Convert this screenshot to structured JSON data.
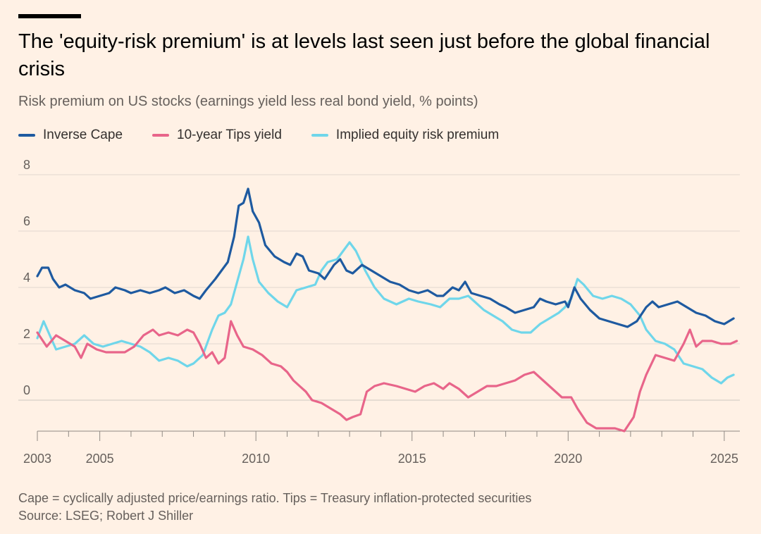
{
  "header": {
    "title": "The 'equity-risk premium' is at levels last seen just before the global financial crisis",
    "subtitle": "Risk premium on US stocks (earnings yield less real bond yield, % points)"
  },
  "legend": [
    {
      "label": "Inverse Cape",
      "color": "#1E5AA0"
    },
    {
      "label": "10-year Tips yield",
      "color": "#E8658A"
    },
    {
      "label": "Implied equity risk premium",
      "color": "#6FD6EA"
    }
  ],
  "footer": {
    "note": "Cape = cyclically adjusted price/earnings ratio. Tips = Treasury inflation-protected securities",
    "source": "Source: LSEG; Robert J Shiller"
  },
  "chart_data": {
    "type": "line",
    "title": "The 'equity-risk premium' is at levels last seen just before the global financial crisis",
    "subtitle": "Risk premium on US stocks (earnings yield less real bond yield, % points)",
    "xlabel": "",
    "ylabel": "",
    "xlim": [
      2003,
      2025.5
    ],
    "ylim": [
      -1.1,
      8
    ],
    "yticks": [
      0,
      2,
      4,
      6,
      8
    ],
    "xticks": [
      2003,
      2005,
      2010,
      2015,
      2020,
      2025
    ],
    "grid": "horizontal",
    "legend_position": "top",
    "series": [
      {
        "name": "Inverse Cape",
        "color": "#1E5AA0",
        "points": [
          [
            2003.0,
            4.4
          ],
          [
            2003.15,
            4.7
          ],
          [
            2003.35,
            4.7
          ],
          [
            2003.5,
            4.3
          ],
          [
            2003.7,
            4.0
          ],
          [
            2003.9,
            4.1
          ],
          [
            2004.2,
            3.9
          ],
          [
            2004.5,
            3.8
          ],
          [
            2004.7,
            3.6
          ],
          [
            2005.0,
            3.7
          ],
          [
            2005.3,
            3.8
          ],
          [
            2005.5,
            4.0
          ],
          [
            2005.8,
            3.9
          ],
          [
            2006.0,
            3.8
          ],
          [
            2006.3,
            3.9
          ],
          [
            2006.6,
            3.8
          ],
          [
            2006.9,
            3.9
          ],
          [
            2007.1,
            4.0
          ],
          [
            2007.4,
            3.8
          ],
          [
            2007.7,
            3.9
          ],
          [
            2008.0,
            3.7
          ],
          [
            2008.2,
            3.6
          ],
          [
            2008.4,
            3.9
          ],
          [
            2008.7,
            4.3
          ],
          [
            2008.9,
            4.6
          ],
          [
            2009.1,
            4.9
          ],
          [
            2009.3,
            5.8
          ],
          [
            2009.45,
            6.9
          ],
          [
            2009.6,
            7.0
          ],
          [
            2009.75,
            7.5
          ],
          [
            2009.9,
            6.7
          ],
          [
            2010.1,
            6.3
          ],
          [
            2010.3,
            5.5
          ],
          [
            2010.6,
            5.1
          ],
          [
            2010.9,
            4.9
          ],
          [
            2011.1,
            4.8
          ],
          [
            2011.3,
            5.2
          ],
          [
            2011.5,
            5.1
          ],
          [
            2011.7,
            4.6
          ],
          [
            2012.0,
            4.5
          ],
          [
            2012.2,
            4.3
          ],
          [
            2012.5,
            4.8
          ],
          [
            2012.7,
            5.0
          ],
          [
            2012.9,
            4.6
          ],
          [
            2013.1,
            4.5
          ],
          [
            2013.4,
            4.8
          ],
          [
            2013.7,
            4.6
          ],
          [
            2014.0,
            4.4
          ],
          [
            2014.3,
            4.2
          ],
          [
            2014.6,
            4.1
          ],
          [
            2014.9,
            3.9
          ],
          [
            2015.2,
            3.8
          ],
          [
            2015.5,
            3.9
          ],
          [
            2015.8,
            3.7
          ],
          [
            2016.0,
            3.7
          ],
          [
            2016.3,
            4.0
          ],
          [
            2016.5,
            3.9
          ],
          [
            2016.7,
            4.2
          ],
          [
            2016.9,
            3.8
          ],
          [
            2017.2,
            3.7
          ],
          [
            2017.5,
            3.6
          ],
          [
            2017.8,
            3.4
          ],
          [
            2018.0,
            3.3
          ],
          [
            2018.3,
            3.1
          ],
          [
            2018.6,
            3.2
          ],
          [
            2018.9,
            3.3
          ],
          [
            2019.1,
            3.6
          ],
          [
            2019.3,
            3.5
          ],
          [
            2019.6,
            3.4
          ],
          [
            2019.9,
            3.5
          ],
          [
            2020.0,
            3.3
          ],
          [
            2020.2,
            4.0
          ],
          [
            2020.4,
            3.6
          ],
          [
            2020.7,
            3.2
          ],
          [
            2021.0,
            2.9
          ],
          [
            2021.3,
            2.8
          ],
          [
            2021.6,
            2.7
          ],
          [
            2021.9,
            2.6
          ],
          [
            2022.2,
            2.8
          ],
          [
            2022.5,
            3.3
          ],
          [
            2022.7,
            3.5
          ],
          [
            2022.9,
            3.3
          ],
          [
            2023.2,
            3.4
          ],
          [
            2023.5,
            3.5
          ],
          [
            2023.8,
            3.3
          ],
          [
            2024.1,
            3.1
          ],
          [
            2024.4,
            3.0
          ],
          [
            2024.7,
            2.8
          ],
          [
            2025.0,
            2.7
          ],
          [
            2025.3,
            2.9
          ]
        ]
      },
      {
        "name": "10-year Tips yield",
        "color": "#E8658A",
        "points": [
          [
            2003.0,
            2.4
          ],
          [
            2003.3,
            1.9
          ],
          [
            2003.6,
            2.3
          ],
          [
            2003.9,
            2.1
          ],
          [
            2004.2,
            1.9
          ],
          [
            2004.4,
            1.5
          ],
          [
            2004.6,
            2.0
          ],
          [
            2004.9,
            1.8
          ],
          [
            2005.2,
            1.7
          ],
          [
            2005.5,
            1.7
          ],
          [
            2005.8,
            1.7
          ],
          [
            2006.1,
            1.9
          ],
          [
            2006.4,
            2.3
          ],
          [
            2006.7,
            2.5
          ],
          [
            2006.9,
            2.3
          ],
          [
            2007.2,
            2.4
          ],
          [
            2007.5,
            2.3
          ],
          [
            2007.8,
            2.5
          ],
          [
            2008.0,
            2.4
          ],
          [
            2008.2,
            2.0
          ],
          [
            2008.4,
            1.5
          ],
          [
            2008.6,
            1.7
          ],
          [
            2008.8,
            1.3
          ],
          [
            2009.0,
            1.5
          ],
          [
            2009.2,
            2.8
          ],
          [
            2009.4,
            2.3
          ],
          [
            2009.6,
            1.9
          ],
          [
            2009.9,
            1.8
          ],
          [
            2010.2,
            1.6
          ],
          [
            2010.5,
            1.3
          ],
          [
            2010.8,
            1.2
          ],
          [
            2011.0,
            1.0
          ],
          [
            2011.2,
            0.7
          ],
          [
            2011.4,
            0.5
          ],
          [
            2011.6,
            0.3
          ],
          [
            2011.8,
            0.0
          ],
          [
            2012.1,
            -0.1
          ],
          [
            2012.4,
            -0.3
          ],
          [
            2012.7,
            -0.5
          ],
          [
            2012.9,
            -0.7
          ],
          [
            2013.1,
            -0.6
          ],
          [
            2013.35,
            -0.5
          ],
          [
            2013.55,
            0.3
          ],
          [
            2013.8,
            0.5
          ],
          [
            2014.1,
            0.6
          ],
          [
            2014.5,
            0.5
          ],
          [
            2014.8,
            0.4
          ],
          [
            2015.1,
            0.3
          ],
          [
            2015.4,
            0.5
          ],
          [
            2015.7,
            0.6
          ],
          [
            2016.0,
            0.4
          ],
          [
            2016.2,
            0.6
          ],
          [
            2016.5,
            0.4
          ],
          [
            2016.8,
            0.1
          ],
          [
            2017.1,
            0.3
          ],
          [
            2017.4,
            0.5
          ],
          [
            2017.7,
            0.5
          ],
          [
            2018.0,
            0.6
          ],
          [
            2018.3,
            0.7
          ],
          [
            2018.6,
            0.9
          ],
          [
            2018.9,
            1.0
          ],
          [
            2019.2,
            0.7
          ],
          [
            2019.5,
            0.4
          ],
          [
            2019.8,
            0.1
          ],
          [
            2020.1,
            0.1
          ],
          [
            2020.3,
            -0.3
          ],
          [
            2020.6,
            -0.8
          ],
          [
            2020.9,
            -1.0
          ],
          [
            2021.2,
            -1.0
          ],
          [
            2021.5,
            -1.0
          ],
          [
            2021.8,
            -1.1
          ],
          [
            2022.1,
            -0.6
          ],
          [
            2022.3,
            0.3
          ],
          [
            2022.5,
            0.9
          ],
          [
            2022.8,
            1.6
          ],
          [
            2023.1,
            1.5
          ],
          [
            2023.4,
            1.4
          ],
          [
            2023.7,
            2.0
          ],
          [
            2023.9,
            2.5
          ],
          [
            2024.1,
            1.9
          ],
          [
            2024.3,
            2.1
          ],
          [
            2024.6,
            2.1
          ],
          [
            2024.9,
            2.0
          ],
          [
            2025.2,
            2.0
          ],
          [
            2025.4,
            2.1
          ]
        ]
      },
      {
        "name": "Implied equity risk premium",
        "color": "#6FD6EA",
        "points": [
          [
            2003.0,
            2.2
          ],
          [
            2003.2,
            2.8
          ],
          [
            2003.4,
            2.3
          ],
          [
            2003.6,
            1.8
          ],
          [
            2003.9,
            1.9
          ],
          [
            2004.2,
            2.0
          ],
          [
            2004.5,
            2.3
          ],
          [
            2004.8,
            2.0
          ],
          [
            2005.1,
            1.9
          ],
          [
            2005.4,
            2.0
          ],
          [
            2005.7,
            2.1
          ],
          [
            2006.0,
            2.0
          ],
          [
            2006.3,
            1.9
          ],
          [
            2006.6,
            1.7
          ],
          [
            2006.9,
            1.4
          ],
          [
            2007.2,
            1.5
          ],
          [
            2007.5,
            1.4
          ],
          [
            2007.8,
            1.2
          ],
          [
            2008.0,
            1.3
          ],
          [
            2008.3,
            1.6
          ],
          [
            2008.6,
            2.5
          ],
          [
            2008.8,
            3.0
          ],
          [
            2009.0,
            3.1
          ],
          [
            2009.2,
            3.4
          ],
          [
            2009.4,
            4.2
          ],
          [
            2009.6,
            5.0
          ],
          [
            2009.75,
            5.8
          ],
          [
            2009.9,
            5.0
          ],
          [
            2010.1,
            4.2
          ],
          [
            2010.4,
            3.8
          ],
          [
            2010.7,
            3.5
          ],
          [
            2011.0,
            3.3
          ],
          [
            2011.3,
            3.9
          ],
          [
            2011.6,
            4.0
          ],
          [
            2011.9,
            4.1
          ],
          [
            2012.1,
            4.6
          ],
          [
            2012.3,
            4.9
          ],
          [
            2012.6,
            5.0
          ],
          [
            2012.8,
            5.3
          ],
          [
            2013.0,
            5.6
          ],
          [
            2013.2,
            5.3
          ],
          [
            2013.5,
            4.6
          ],
          [
            2013.8,
            4.0
          ],
          [
            2014.1,
            3.6
          ],
          [
            2014.5,
            3.4
          ],
          [
            2014.9,
            3.6
          ],
          [
            2015.2,
            3.5
          ],
          [
            2015.6,
            3.4
          ],
          [
            2015.9,
            3.3
          ],
          [
            2016.2,
            3.6
          ],
          [
            2016.5,
            3.6
          ],
          [
            2016.8,
            3.7
          ],
          [
            2017.0,
            3.5
          ],
          [
            2017.3,
            3.2
          ],
          [
            2017.6,
            3.0
          ],
          [
            2017.9,
            2.8
          ],
          [
            2018.2,
            2.5
          ],
          [
            2018.5,
            2.4
          ],
          [
            2018.8,
            2.4
          ],
          [
            2019.1,
            2.7
          ],
          [
            2019.4,
            2.9
          ],
          [
            2019.7,
            3.1
          ],
          [
            2019.9,
            3.3
          ],
          [
            2020.1,
            3.6
          ],
          [
            2020.3,
            4.3
          ],
          [
            2020.5,
            4.1
          ],
          [
            2020.8,
            3.7
          ],
          [
            2021.1,
            3.6
          ],
          [
            2021.4,
            3.7
          ],
          [
            2021.7,
            3.6
          ],
          [
            2022.0,
            3.4
          ],
          [
            2022.3,
            3.0
          ],
          [
            2022.5,
            2.5
          ],
          [
            2022.8,
            2.1
          ],
          [
            2023.1,
            2.0
          ],
          [
            2023.4,
            1.8
          ],
          [
            2023.7,
            1.3
          ],
          [
            2024.0,
            1.2
          ],
          [
            2024.3,
            1.1
          ],
          [
            2024.6,
            0.8
          ],
          [
            2024.9,
            0.6
          ],
          [
            2025.1,
            0.8
          ],
          [
            2025.3,
            0.9
          ]
        ]
      }
    ]
  }
}
